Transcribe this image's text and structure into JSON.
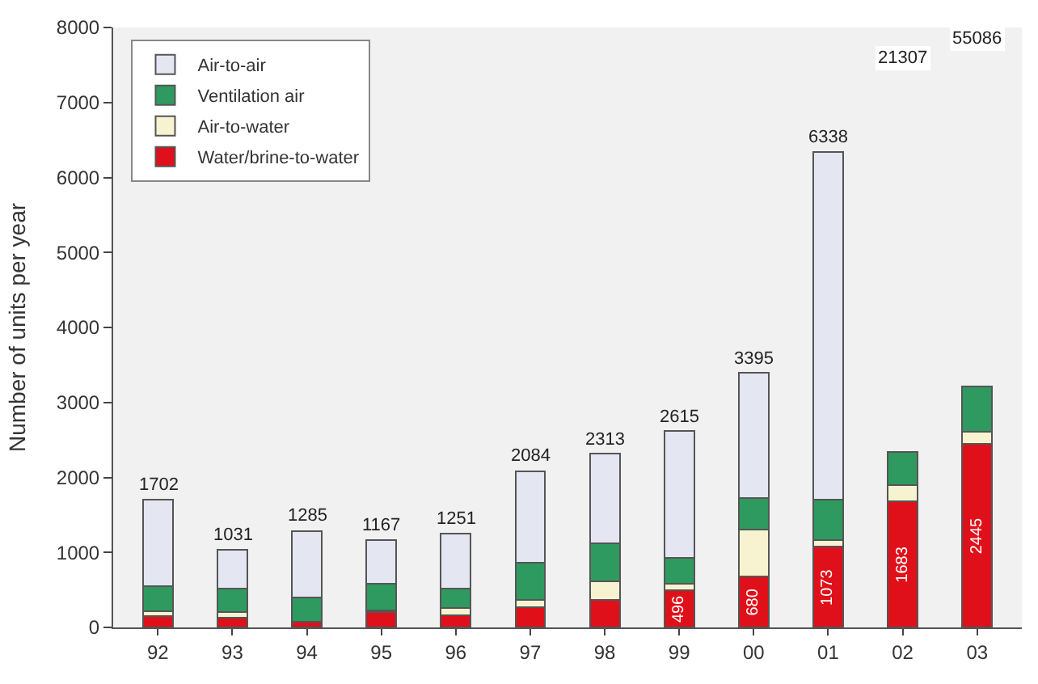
{
  "chart_data": {
    "type": "bar",
    "stacked": true,
    "ylabel": "Number of units per year",
    "categories": [
      "92",
      "93",
      "94",
      "95",
      "96",
      "97",
      "98",
      "99",
      "00",
      "01",
      "02",
      "03"
    ],
    "series": [
      {
        "name": "Water/brine-to-water",
        "color": "#e0101a",
        "values": [
          150,
          130,
          80,
          200,
          165,
          270,
          370,
          496,
          680,
          1073,
          1683,
          2445
        ],
        "value_labels": [
          null,
          null,
          null,
          null,
          null,
          null,
          null,
          "496",
          "680",
          "1073",
          "1683",
          "2445"
        ]
      },
      {
        "name": "Air-to-water",
        "color": "#f7f3d0",
        "values": [
          70,
          70,
          0,
          30,
          90,
          95,
          240,
          82,
          627,
          91,
          210,
          169
        ]
      },
      {
        "name": "Ventilation air",
        "color": "#2e9a5f",
        "values": [
          330,
          320,
          320,
          350,
          260,
          500,
          514,
          350,
          414,
          536,
          450,
          600
        ]
      },
      {
        "name": "Air-to-air",
        "color": "#e4e6f2",
        "values": [
          1152,
          511,
          885,
          587,
          736,
          1219,
          1189,
          1687,
          1674,
          4638,
          null,
          null
        ]
      }
    ],
    "totals": [
      "1702",
      "1031",
      "1285",
      "1167",
      "1251",
      "2084",
      "2313",
      "2615",
      "3395",
      "6338",
      null,
      null
    ],
    "annotations": [
      {
        "text": "21307",
        "x": "02",
        "y": 7600
      },
      {
        "text": "55086",
        "x": "03",
        "y": 7850
      }
    ],
    "ylim": [
      0,
      8000
    ],
    "yticks": [
      0,
      1000,
      2000,
      3000,
      4000,
      5000,
      6000,
      7000,
      8000
    ],
    "grid": false,
    "legend": "top left"
  }
}
